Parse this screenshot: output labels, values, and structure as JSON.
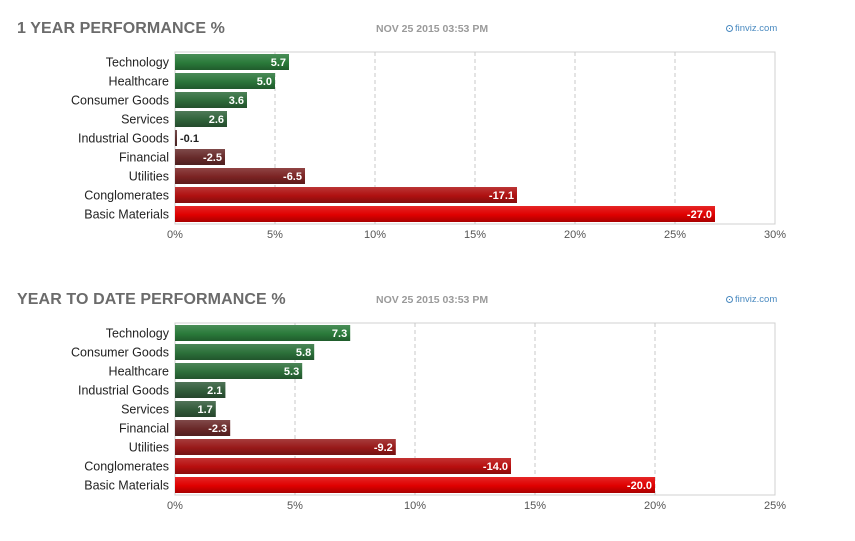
{
  "chart_data": [
    {
      "type": "bar",
      "orientation": "horizontal",
      "title": "1 YEAR PERFORMANCE %",
      "timestamp": "NOV 25 2015 03:53 PM",
      "brand": "finviz.com",
      "categories": [
        "Technology",
        "Healthcare",
        "Consumer Goods",
        "Services",
        "Industrial Goods",
        "Financial",
        "Utilities",
        "Conglomerates",
        "Basic Materials"
      ],
      "values": [
        5.7,
        5.0,
        3.6,
        2.6,
        -0.1,
        -2.5,
        -6.5,
        -17.1,
        -27.0
      ],
      "value_labels": [
        "5.7",
        "5.0",
        "3.6",
        "2.6",
        "-0.1",
        "-2.5",
        "-6.5",
        "-17.1",
        "-27.0"
      ],
      "xlim": [
        0,
        30
      ],
      "xticks": [
        0,
        5,
        10,
        15,
        20,
        25,
        30
      ],
      "xtick_labels": [
        "0%",
        "5%",
        "10%",
        "15%",
        "20%",
        "25%",
        "30%"
      ],
      "scale": "absolute value",
      "grid": true,
      "colors": {
        "positive": "#2a7a3a",
        "negative": "#e00000",
        "neutral": "#3a3a3a"
      }
    },
    {
      "type": "bar",
      "orientation": "horizontal",
      "title": "YEAR TO DATE PERFORMANCE %",
      "timestamp": "NOV 25 2015 03:53 PM",
      "brand": "finviz.com",
      "categories": [
        "Technology",
        "Consumer Goods",
        "Healthcare",
        "Industrial Goods",
        "Services",
        "Financial",
        "Utilities",
        "Conglomerates",
        "Basic Materials"
      ],
      "values": [
        7.3,
        5.8,
        5.3,
        2.1,
        1.7,
        -2.3,
        -9.2,
        -14.0,
        -20.0
      ],
      "value_labels": [
        "7.3",
        "5.8",
        "5.3",
        "2.1",
        "1.7",
        "-2.3",
        "-9.2",
        "-14.0",
        "-20.0"
      ],
      "xlim": [
        0,
        25
      ],
      "xticks": [
        0,
        5,
        10,
        15,
        20,
        25
      ],
      "xtick_labels": [
        "0%",
        "5%",
        "10%",
        "15%",
        "20%",
        "25%"
      ],
      "scale": "absolute value",
      "grid": true,
      "colors": {
        "positive": "#2a7a3a",
        "negative": "#e00000",
        "neutral": "#3a3a3a"
      }
    }
  ]
}
